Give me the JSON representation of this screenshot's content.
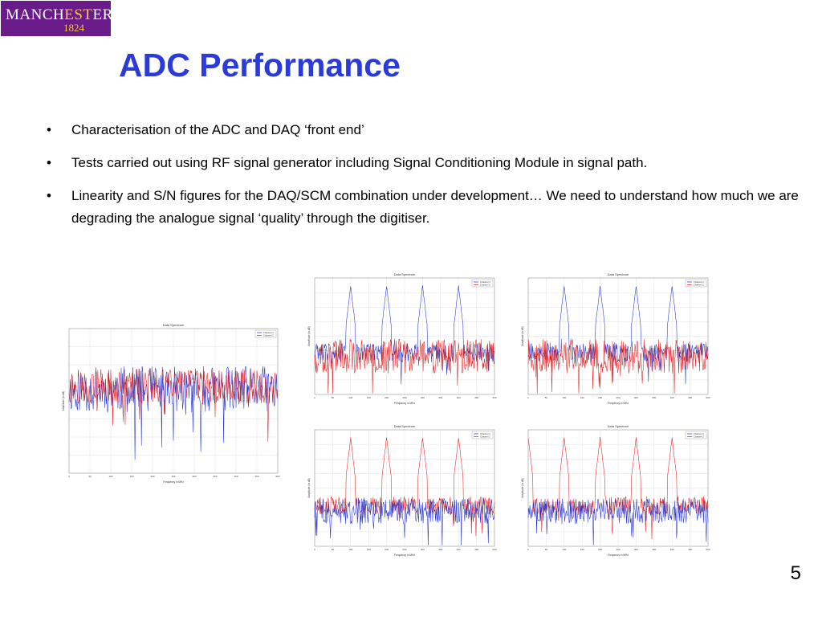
{
  "logo": {
    "part1": "MANCH",
    "part2": "EST",
    "part3": "ER",
    "year": "1824"
  },
  "title": "ADC Performance",
  "bullets": [
    "Characterisation of the ADC and DAQ ‘front end’",
    "Tests carried out using RF signal generator including Signal Conditioning Module in signal path.",
    "Linearity and S/N figures for the DAQ/SCM combination under development… We need to understand how much we are degrading the analogue signal ‘quality’ through the digitiser."
  ],
  "bullet_char": "•",
  "page_number": "5",
  "colors": {
    "title": "#2b3bd8",
    "logo_bg": "#6a1b8a",
    "logo_accent": "#f6c545",
    "channel1": "#2233cc",
    "channel2": "#dd2222"
  },
  "chart_data": [
    {
      "type": "line",
      "title": "Data Spectrum",
      "xlabel": "Frequency in MHz",
      "ylabel": "Amplitude (in dB)",
      "legend": [
        "Channel 1",
        "Channel 2"
      ],
      "legend_position": "top-right",
      "xticks": [
        "0",
        "50",
        "100",
        "150",
        "200",
        "250",
        "300",
        "350",
        "400",
        "450",
        "500"
      ],
      "ylim": [
        -120,
        -40
      ],
      "peaks": [],
      "front": "red",
      "grid": true
    },
    {
      "type": "line",
      "title": "Data Spectrum",
      "xlabel": "Frequency in MHz",
      "ylabel": "Amplitude (in dB)",
      "legend": [
        "Channel 1",
        "Channel 2"
      ],
      "legend_position": "top-right",
      "xticks": [
        "0",
        "50",
        "100",
        "150",
        "200",
        "250",
        "300",
        "350",
        "400",
        "450",
        "500"
      ],
      "ylim": [
        -120,
        0
      ],
      "peaks": [
        100,
        200,
        300,
        400
      ],
      "peak_series": "Channel 1",
      "front": "red",
      "grid": true
    },
    {
      "type": "line",
      "title": "Data Spectrum",
      "xlabel": "Frequency in MHz",
      "ylabel": "Amplitude (in dB)",
      "legend": [
        "Channel 1",
        "Channel 2"
      ],
      "legend_position": "top-right",
      "xticks": [
        "0",
        "50",
        "100",
        "150",
        "200",
        "250",
        "300",
        "350",
        "400",
        "450",
        "500"
      ],
      "ylim": [
        -120,
        0
      ],
      "peaks": [
        100,
        200,
        300,
        400
      ],
      "peak_series": "Channel 1",
      "front": "red",
      "grid": true
    },
    {
      "type": "line",
      "title": "Data Spectrum",
      "xlabel": "Frequency in MHz",
      "ylabel": "Amplitude (in dB)",
      "legend": [
        "Channel 1",
        "Channel 2"
      ],
      "legend_position": "top-right",
      "xticks": [
        "0",
        "50",
        "100",
        "150",
        "200",
        "250",
        "300",
        "350",
        "400",
        "450",
        "500"
      ],
      "ylim": [
        -120,
        0
      ],
      "peaks": [
        100,
        200,
        300,
        400
      ],
      "peak_series": "Channel 2",
      "front": "blue",
      "grid": true
    },
    {
      "type": "line",
      "title": "Data Spectrum",
      "xlabel": "Frequency in MHz",
      "ylabel": "Amplitude (in dB)",
      "legend": [
        "Channel 1",
        "Channel 2"
      ],
      "legend_position": "top-right",
      "xticks": [
        "0",
        "50",
        "100",
        "150",
        "200",
        "250",
        "300",
        "350",
        "400",
        "450",
        "500"
      ],
      "ylim": [
        -120,
        0
      ],
      "peaks": [
        0,
        100,
        200,
        300,
        400
      ],
      "peak_series": "Channel 2",
      "front": "blue",
      "grid": true
    }
  ]
}
